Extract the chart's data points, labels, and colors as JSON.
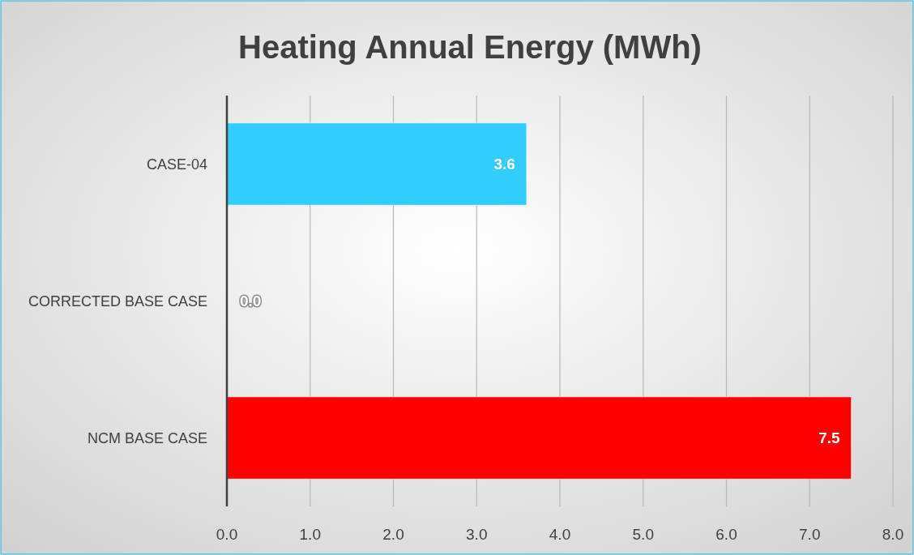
{
  "chart_data": {
    "type": "bar",
    "orientation": "horizontal",
    "title": "Heating Annual Energy (MWh)",
    "categories": [
      "CASE-04",
      "CORRECTED BASE CASE",
      "NCM BASE CASE"
    ],
    "values": [
      3.6,
      0.0,
      7.5
    ],
    "colors": [
      "#33ccff",
      "#33ccff",
      "#ff0000"
    ],
    "xlim": [
      0,
      8
    ],
    "xticks": [
      {
        "value": 0,
        "label": "0.0"
      },
      {
        "value": 1,
        "label": "1.0"
      },
      {
        "value": 2,
        "label": "2.0"
      },
      {
        "value": 3,
        "label": "3.0"
      },
      {
        "value": 4,
        "label": "4.0"
      },
      {
        "value": 5,
        "label": "5.0"
      },
      {
        "value": 6,
        "label": "6.0"
      },
      {
        "value": 7,
        "label": "7.0"
      },
      {
        "value": 8,
        "label": "8.0"
      }
    ],
    "value_labels": [
      "3.6",
      "0.0",
      "7.5"
    ],
    "grid": "x"
  }
}
